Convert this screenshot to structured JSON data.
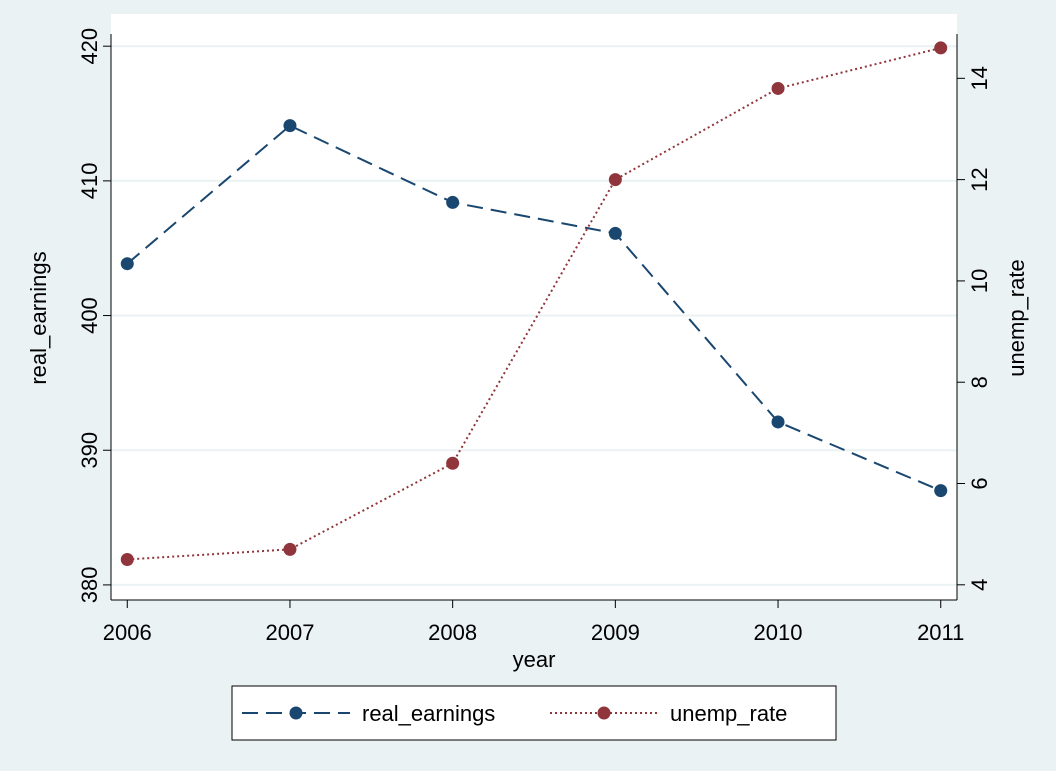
{
  "chart_data": {
    "type": "line",
    "x": [
      2006,
      2007,
      2008,
      2009,
      2010,
      2011
    ],
    "x_label": "year",
    "y_label": "real_earnings",
    "y2_label": "unemp_rate",
    "series": [
      {
        "name": "real_earnings",
        "color": "#1a476f",
        "values": [
          403.85,
          414.1,
          408.4,
          406.1,
          392.1,
          387.0
        ]
      },
      {
        "name": "unemp_rate",
        "color": "#90353b",
        "axis": "y2",
        "values": [
          4.5,
          4.7,
          6.4,
          12.0,
          13.8,
          14.6
        ]
      }
    ],
    "xlim": [
      2005.9,
      2011.1
    ],
    "xticks": [
      2006,
      2007,
      2008,
      2009,
      2010,
      2011
    ],
    "ylim": [
      378.88,
      422.39
    ],
    "yticks": [
      380,
      390,
      400,
      410,
      420
    ],
    "y2lim": [
      3.7,
      15.27
    ],
    "y2ticks": [
      4,
      6,
      8,
      10,
      12,
      14
    ],
    "grid": true,
    "legend": "bottom"
  }
}
